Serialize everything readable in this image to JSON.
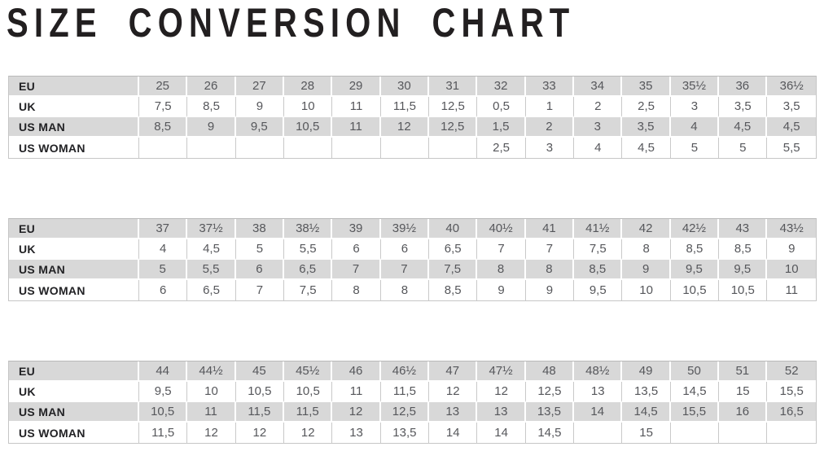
{
  "title": "SIZE CONVERSION CHART",
  "colors": {
    "shaded_row": "#d8d8d8",
    "border": "#c9c9c9",
    "title_text": "#221f20",
    "cell_text": "#56575b"
  },
  "chart_data": [
    {
      "type": "table",
      "rows": [
        {
          "label": "EU",
          "values": [
            "25",
            "26",
            "27",
            "28",
            "29",
            "30",
            "31",
            "32",
            "33",
            "34",
            "35",
            "35½",
            "36",
            "36½"
          ]
        },
        {
          "label": "UK",
          "values": [
            "7,5",
            "8,5",
            "9",
            "10",
            "11",
            "11,5",
            "12,5",
            "0,5",
            "1",
            "2",
            "2,5",
            "3",
            "3,5",
            "3,5"
          ]
        },
        {
          "label": "US MAN",
          "values": [
            "8,5",
            "9",
            "9,5",
            "10,5",
            "11",
            "12",
            "12,5",
            "1,5",
            "2",
            "3",
            "3,5",
            "4",
            "4,5",
            "4,5"
          ]
        },
        {
          "label": "US WOMAN",
          "values": [
            "",
            "",
            "",
            "",
            "",
            "",
            "",
            "2,5",
            "3",
            "4",
            "4,5",
            "5",
            "5",
            "5,5"
          ]
        }
      ]
    },
    {
      "type": "table",
      "rows": [
        {
          "label": "EU",
          "values": [
            "37",
            "37½",
            "38",
            "38½",
            "39",
            "39½",
            "40",
            "40½",
            "41",
            "41½",
            "42",
            "42½",
            "43",
            "43½"
          ]
        },
        {
          "label": "UK",
          "values": [
            "4",
            "4,5",
            "5",
            "5,5",
            "6",
            "6",
            "6,5",
            "7",
            "7",
            "7,5",
            "8",
            "8,5",
            "8,5",
            "9"
          ]
        },
        {
          "label": "US MAN",
          "values": [
            "5",
            "5,5",
            "6",
            "6,5",
            "7",
            "7",
            "7,5",
            "8",
            "8",
            "8,5",
            "9",
            "9,5",
            "9,5",
            "10"
          ]
        },
        {
          "label": "US WOMAN",
          "values": [
            "6",
            "6,5",
            "7",
            "7,5",
            "8",
            "8",
            "8,5",
            "9",
            "9",
            "9,5",
            "10",
            "10,5",
            "10,5",
            "11"
          ]
        }
      ]
    },
    {
      "type": "table",
      "rows": [
        {
          "label": "EU",
          "values": [
            "44",
            "44½",
            "45",
            "45½",
            "46",
            "46½",
            "47",
            "47½",
            "48",
            "48½",
            "49",
            "50",
            "51",
            "52"
          ]
        },
        {
          "label": "UK",
          "values": [
            "9,5",
            "10",
            "10,5",
            "10,5",
            "11",
            "11,5",
            "12",
            "12",
            "12,5",
            "13",
            "13,5",
            "14,5",
            "15",
            "15,5"
          ]
        },
        {
          "label": "US MAN",
          "values": [
            "10,5",
            "11",
            "11,5",
            "11,5",
            "12",
            "12,5",
            "13",
            "13",
            "13,5",
            "14",
            "14,5",
            "15,5",
            "16",
            "16,5"
          ]
        },
        {
          "label": "US WOMAN",
          "values": [
            "11,5",
            "12",
            "12",
            "12",
            "13",
            "13,5",
            "14",
            "14",
            "14,5",
            "",
            "15",
            "",
            "",
            ""
          ]
        }
      ]
    }
  ]
}
